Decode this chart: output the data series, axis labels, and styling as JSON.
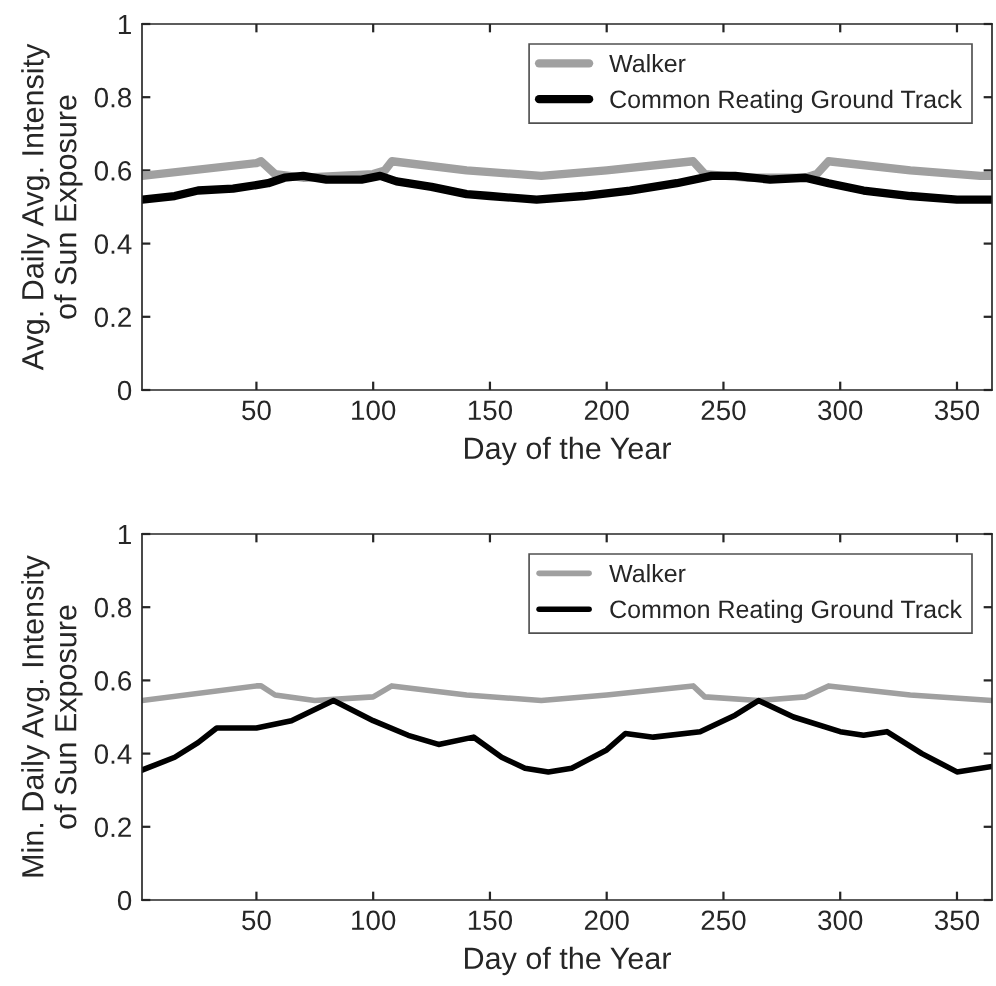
{
  "chart_data": [
    {
      "type": "line",
      "xlabel": "Day of the Year",
      "ylabel": "Avg. Daily Avg. Intensity\nof Sun Exposure",
      "xlim": [
        1,
        365
      ],
      "ylim": [
        0,
        1
      ],
      "xticks": [
        50,
        100,
        150,
        200,
        250,
        300,
        350
      ],
      "yticks": [
        0,
        0.2,
        0.4,
        0.6,
        0.8,
        1
      ],
      "legend": "top right",
      "grid": false,
      "line_style": "solid",
      "series": [
        {
          "name": "Walker",
          "color": "#a0a0a0",
          "x": [
            1,
            50,
            52,
            58,
            70,
            100,
            105,
            108,
            140,
            172,
            200,
            237,
            242,
            260,
            285,
            290,
            295,
            330,
            360,
            365
          ],
          "values": [
            0.585,
            0.62,
            0.625,
            0.59,
            0.58,
            0.59,
            0.6,
            0.625,
            0.6,
            0.585,
            0.6,
            0.625,
            0.59,
            0.58,
            0.58,
            0.59,
            0.625,
            0.6,
            0.585,
            0.585
          ]
        },
        {
          "name": "Common Reating Ground Track",
          "color": "#000000",
          "x": [
            1,
            15,
            25,
            40,
            55,
            62,
            70,
            80,
            95,
            103,
            110,
            125,
            140,
            150,
            170,
            190,
            210,
            230,
            245,
            255,
            270,
            285,
            295,
            310,
            330,
            350,
            365
          ],
          "values": [
            0.52,
            0.53,
            0.545,
            0.55,
            0.565,
            0.58,
            0.585,
            0.575,
            0.575,
            0.585,
            0.57,
            0.555,
            0.535,
            0.53,
            0.52,
            0.53,
            0.545,
            0.565,
            0.585,
            0.585,
            0.575,
            0.58,
            0.565,
            0.545,
            0.53,
            0.52,
            0.52
          ]
        }
      ]
    },
    {
      "type": "line",
      "xlabel": "Day of the Year",
      "ylabel": "Min. Daily Avg. Intensity\nof Sun Exposure",
      "xlim": [
        1,
        365
      ],
      "ylim": [
        0,
        1
      ],
      "xticks": [
        50,
        100,
        150,
        200,
        250,
        300,
        350
      ],
      "yticks": [
        0,
        0.2,
        0.4,
        0.6,
        0.8,
        1
      ],
      "legend": "top right",
      "grid": false,
      "line_style": "solid",
      "series": [
        {
          "name": "Walker",
          "color": "#a0a0a0",
          "x": [
            1,
            50,
            52,
            58,
            75,
            100,
            108,
            140,
            172,
            200,
            237,
            242,
            265,
            285,
            295,
            330,
            365
          ],
          "values": [
            0.545,
            0.585,
            0.585,
            0.56,
            0.545,
            0.555,
            0.585,
            0.56,
            0.545,
            0.56,
            0.585,
            0.555,
            0.545,
            0.555,
            0.585,
            0.56,
            0.545
          ]
        },
        {
          "name": "Common Reating Ground Track",
          "color": "#000000",
          "x": [
            1,
            15,
            25,
            33,
            50,
            65,
            83,
            100,
            115,
            128,
            143,
            155,
            165,
            175,
            185,
            200,
            208,
            220,
            240,
            255,
            265,
            280,
            300,
            310,
            320,
            335,
            350,
            365
          ],
          "values": [
            0.355,
            0.39,
            0.43,
            0.47,
            0.47,
            0.49,
            0.545,
            0.49,
            0.45,
            0.425,
            0.445,
            0.39,
            0.36,
            0.35,
            0.36,
            0.41,
            0.455,
            0.445,
            0.46,
            0.505,
            0.545,
            0.5,
            0.46,
            0.45,
            0.46,
            0.4,
            0.35,
            0.365
          ]
        }
      ]
    }
  ]
}
